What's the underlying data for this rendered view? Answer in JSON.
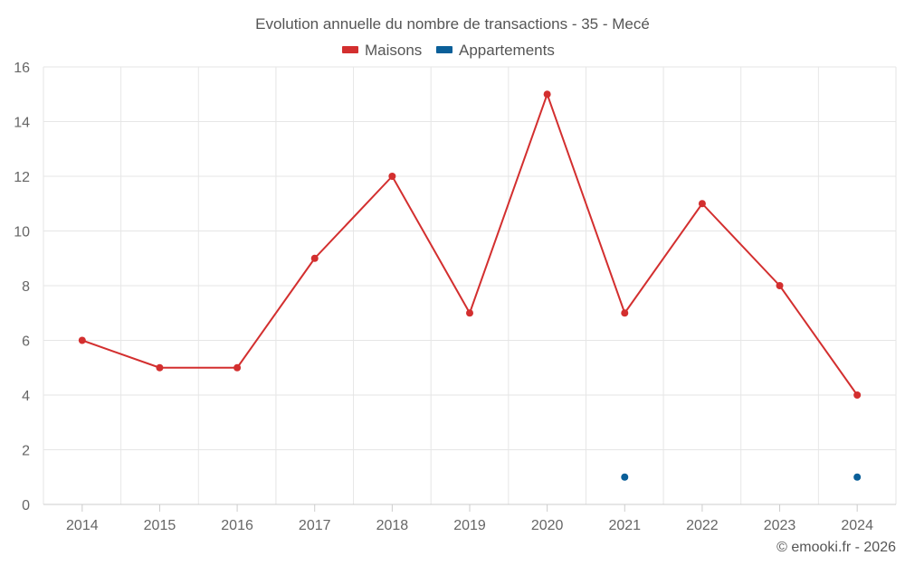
{
  "chart_data": {
    "type": "line",
    "title": "Evolution annuelle du nombre de transactions - 35 - Mecé",
    "categories": [
      "2014",
      "2015",
      "2016",
      "2017",
      "2018",
      "2019",
      "2020",
      "2021",
      "2022",
      "2023",
      "2024"
    ],
    "series": [
      {
        "name": "Maisons",
        "color": "#d32f2f",
        "values": [
          6,
          5,
          5,
          9,
          12,
          7,
          15,
          7,
          11,
          8,
          4
        ]
      },
      {
        "name": "Appartements",
        "color": "#0a5f99",
        "values": [
          null,
          null,
          null,
          null,
          null,
          null,
          null,
          1,
          null,
          null,
          1
        ]
      }
    ],
    "ylim": [
      0,
      16
    ],
    "yticks": [
      0,
      2,
      4,
      6,
      8,
      10,
      12,
      14,
      16
    ],
    "xlabel": "",
    "ylabel": "",
    "grid": true,
    "legend": "top-center"
  },
  "credit": "© emooki.fr - 2026"
}
